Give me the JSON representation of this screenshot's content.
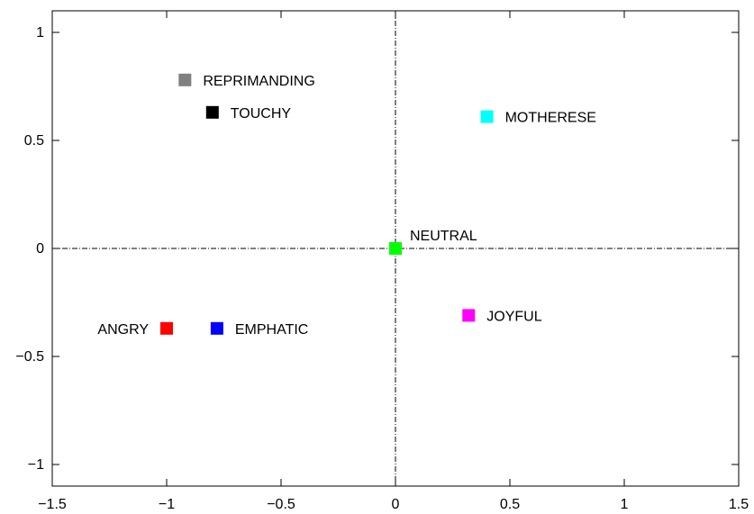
{
  "chart_data": {
    "type": "scatter",
    "title": "",
    "xlabel": "",
    "ylabel": "",
    "xlim": [
      -1.5,
      1.5
    ],
    "ylim": [
      -1.1,
      1.1
    ],
    "x_ticks": [
      {
        "value": -1.5,
        "label": "−1.5"
      },
      {
        "value": -1,
        "label": "−1"
      },
      {
        "value": -0.5,
        "label": "−0.5"
      },
      {
        "value": 0,
        "label": "0"
      },
      {
        "value": 0.5,
        "label": "0.5"
      },
      {
        "value": 1,
        "label": "1"
      },
      {
        "value": 1.5,
        "label": "1.5"
      }
    ],
    "y_ticks": [
      {
        "value": -1,
        "label": "−1"
      },
      {
        "value": -0.5,
        "label": "−0.5"
      },
      {
        "value": 0,
        "label": "0"
      },
      {
        "value": 0.5,
        "label": "0.5"
      },
      {
        "value": 1,
        "label": "1"
      }
    ],
    "grid": false,
    "zero_lines": true,
    "points": [
      {
        "label": "REPRIMANDING",
        "x": -0.92,
        "y": 0.78,
        "color": "#808080",
        "label_side": "right"
      },
      {
        "label": "TOUCHY",
        "x": -0.8,
        "y": 0.63,
        "color": "#000000",
        "label_side": "right"
      },
      {
        "label": "MOTHERESE",
        "x": 0.4,
        "y": 0.61,
        "color": "#00ffff",
        "label_side": "right"
      },
      {
        "label": "NEUTRAL",
        "x": 0.0,
        "y": 0.0,
        "color": "#00ff00",
        "label_side": "right-above"
      },
      {
        "label": "JOYFUL",
        "x": 0.32,
        "y": -0.31,
        "color": "#ff00ff",
        "label_side": "right"
      },
      {
        "label": "ANGRY",
        "x": -1.0,
        "y": -0.37,
        "color": "#ff0000",
        "label_side": "left"
      },
      {
        "label": "EMPHATIC",
        "x": -0.78,
        "y": -0.37,
        "color": "#0000ff",
        "label_side": "right"
      }
    ]
  }
}
